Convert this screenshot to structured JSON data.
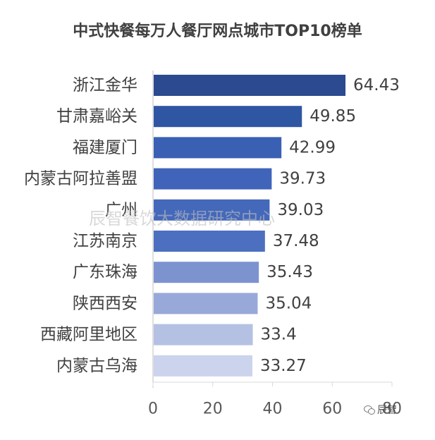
{
  "chart_data": {
    "type": "bar",
    "orientation": "horizontal",
    "title": "中式快餐每万人餐厅网点城市TOP10榜单",
    "categories": [
      "浙江金华",
      "甘肃嘉峪关",
      "福建厦门",
      "内蒙古阿拉善盟",
      "广州",
      "江苏南京",
      "广东珠海",
      "陕西西安",
      "西藏阿里地区",
      "内蒙古乌海"
    ],
    "values": [
      64.43,
      49.85,
      42.99,
      39.73,
      39.03,
      37.48,
      35.43,
      35.04,
      33.4,
      33.27
    ],
    "value_labels": [
      "64.43",
      "49.85",
      "42.99",
      "39.73",
      "39.03",
      "37.48",
      "35.43",
      "35.04",
      "33.4",
      "33.27"
    ],
    "bar_colors": [
      "#2b4a8f",
      "#2f56a3",
      "#3a60b4",
      "#4064b9",
      "#4468ba",
      "#4c70bf",
      "#7c93d0",
      "#98a9d9",
      "#b5c1e3",
      "#ccd3ec"
    ],
    "xlim": [
      0,
      80
    ],
    "xticks": [
      "0",
      "20",
      "40",
      "60",
      "80"
    ],
    "grid": false,
    "legend": "none"
  },
  "watermark": "辰智餐饮大数据研究中心",
  "logo": {
    "text": "辰智",
    "icon": "wechat-icon"
  }
}
